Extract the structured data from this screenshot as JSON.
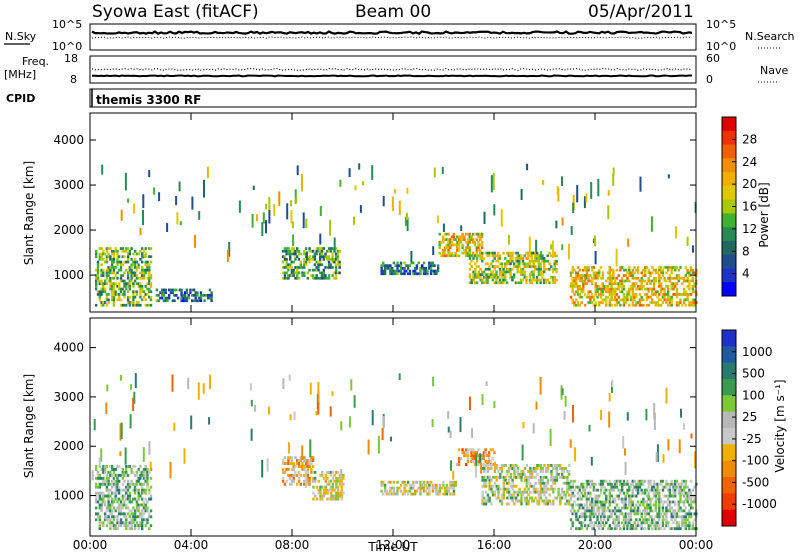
{
  "header": {
    "station": "Syowa East (fitACF)",
    "beam": "Beam 00",
    "date": "05/Apr/2011"
  },
  "strip_labels": {
    "nsky": "N.Sky",
    "nsearch": "N.Search",
    "freq": "Freq.",
    "freq_unit": "[MHz]",
    "nave": "Nave",
    "cpid": "CPID",
    "cpid_value": "themis 3300 RF",
    "nsky_ticks": [
      "10^5",
      "10^0"
    ],
    "nsearch_ticks": [
      "10^5",
      "10^0"
    ],
    "freq_ticks": [
      "18",
      "8"
    ],
    "nave_ticks": [
      "60",
      "0"
    ]
  },
  "power_colorbar": {
    "title": "Power [dB]",
    "ticks": [
      "28",
      "24",
      "20",
      "16",
      "12",
      "8",
      "4"
    ],
    "colors": [
      "#e00000",
      "#f03000",
      "#f06000",
      "#f09000",
      "#f0b000",
      "#e0c800",
      "#a8c800",
      "#40b030",
      "#2a8a55",
      "#1f6a60",
      "#1e4e8c",
      "#1e32c8",
      "#0000ff"
    ]
  },
  "velocity_colorbar": {
    "title": "Velocity [m s⁻¹]",
    "ticks": [
      "1000",
      "500",
      "100",
      "25",
      "-25",
      "-100",
      "-500",
      "-1000"
    ],
    "colors": [
      "#1e32c8",
      "#1e5aa0",
      "#2a7a70",
      "#3a9a50",
      "#7cc83a",
      "#b8b8b8",
      "#c8c8c8",
      "#f0b000",
      "#f08c00",
      "#f06400",
      "#f03c00",
      "#e00000"
    ]
  },
  "chart_data": {
    "type": "heatmap",
    "xlabel": "Time UT",
    "x_ticks": [
      "00:00",
      "04:00",
      "08:00",
      "12:00",
      "16:00",
      "20:00",
      "00:00"
    ],
    "xlim_hours": [
      0,
      24
    ],
    "ylabel": "Slant Range [km]",
    "y_ticks": [
      1000,
      2000,
      3000,
      4000
    ],
    "ylim": [
      180,
      4600
    ],
    "panels": [
      {
        "name": "Power",
        "unit": "dB",
        "colorbar_ticks": [
          4,
          8,
          12,
          16,
          20,
          24,
          28
        ],
        "echo_regions": [
          {
            "t0": 0.2,
            "t1": 2.4,
            "r0": 300,
            "r1": 1600,
            "value": 14
          },
          {
            "t0": 2.6,
            "t1": 4.8,
            "r0": 400,
            "r1": 700,
            "value": 8
          },
          {
            "t0": 7.6,
            "t1": 9.9,
            "r0": 900,
            "r1": 1600,
            "value": 12
          },
          {
            "t0": 11.5,
            "t1": 13.8,
            "r0": 1000,
            "r1": 1300,
            "value": 8
          },
          {
            "t0": 13.8,
            "t1": 15.5,
            "r0": 1400,
            "r1": 1900,
            "value": 20
          },
          {
            "t0": 15.0,
            "t1": 18.5,
            "r0": 800,
            "r1": 1500,
            "value": 16
          },
          {
            "t0": 19.0,
            "t1": 24.0,
            "r0": 300,
            "r1": 1200,
            "value": 20
          }
        ]
      },
      {
        "name": "Velocity",
        "unit": "m s-1",
        "colorbar_ticks": [
          -1000,
          -500,
          -100,
          -25,
          25,
          100,
          500,
          1000
        ],
        "echo_regions": [
          {
            "t0": 0.2,
            "t1": 2.4,
            "r0": 300,
            "r1": 1600,
            "value": 300
          },
          {
            "t0": 7.6,
            "t1": 8.8,
            "r0": 1200,
            "r1": 1800,
            "value": -300
          },
          {
            "t0": 8.8,
            "t1": 10.0,
            "r0": 900,
            "r1": 1500,
            "value": 0
          },
          {
            "t0": 11.5,
            "t1": 14.5,
            "r0": 1000,
            "r1": 1300,
            "value": 0
          },
          {
            "t0": 14.5,
            "t1": 16.0,
            "r0": 1600,
            "r1": 1950,
            "value": -400
          },
          {
            "t0": 15.5,
            "t1": 19.0,
            "r0": 800,
            "r1": 1600,
            "value": 80
          },
          {
            "t0": 19.0,
            "t1": 24.0,
            "r0": 300,
            "r1": 1300,
            "value": 300
          }
        ]
      }
    ]
  }
}
